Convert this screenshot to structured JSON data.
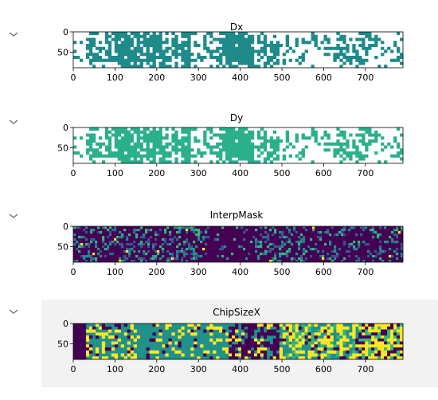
{
  "outputs": [
    {
      "title": "Dx",
      "palette": "teal_binary",
      "fill_color": "#1f8a8a",
      "selected": false
    },
    {
      "title": "Dy",
      "palette": "green_binary",
      "fill_color": "#2bb08c",
      "selected": false
    },
    {
      "title": "InterpMask",
      "palette": "viridis_sparse",
      "fill_color": "#440154",
      "selected": false
    },
    {
      "title": "ChipSizeX",
      "palette": "viridis_levels",
      "fill_color": "#21918c",
      "selected": true
    }
  ],
  "axes": {
    "x_ticks": [
      "0",
      "100",
      "200",
      "300",
      "400",
      "500",
      "600",
      "700"
    ],
    "y_ticks": [
      "0",
      "50"
    ],
    "x_range": [
      0,
      790
    ],
    "y_range": [
      0,
      88
    ]
  },
  "icons": {
    "collapse": "chevron-down-icon"
  }
}
